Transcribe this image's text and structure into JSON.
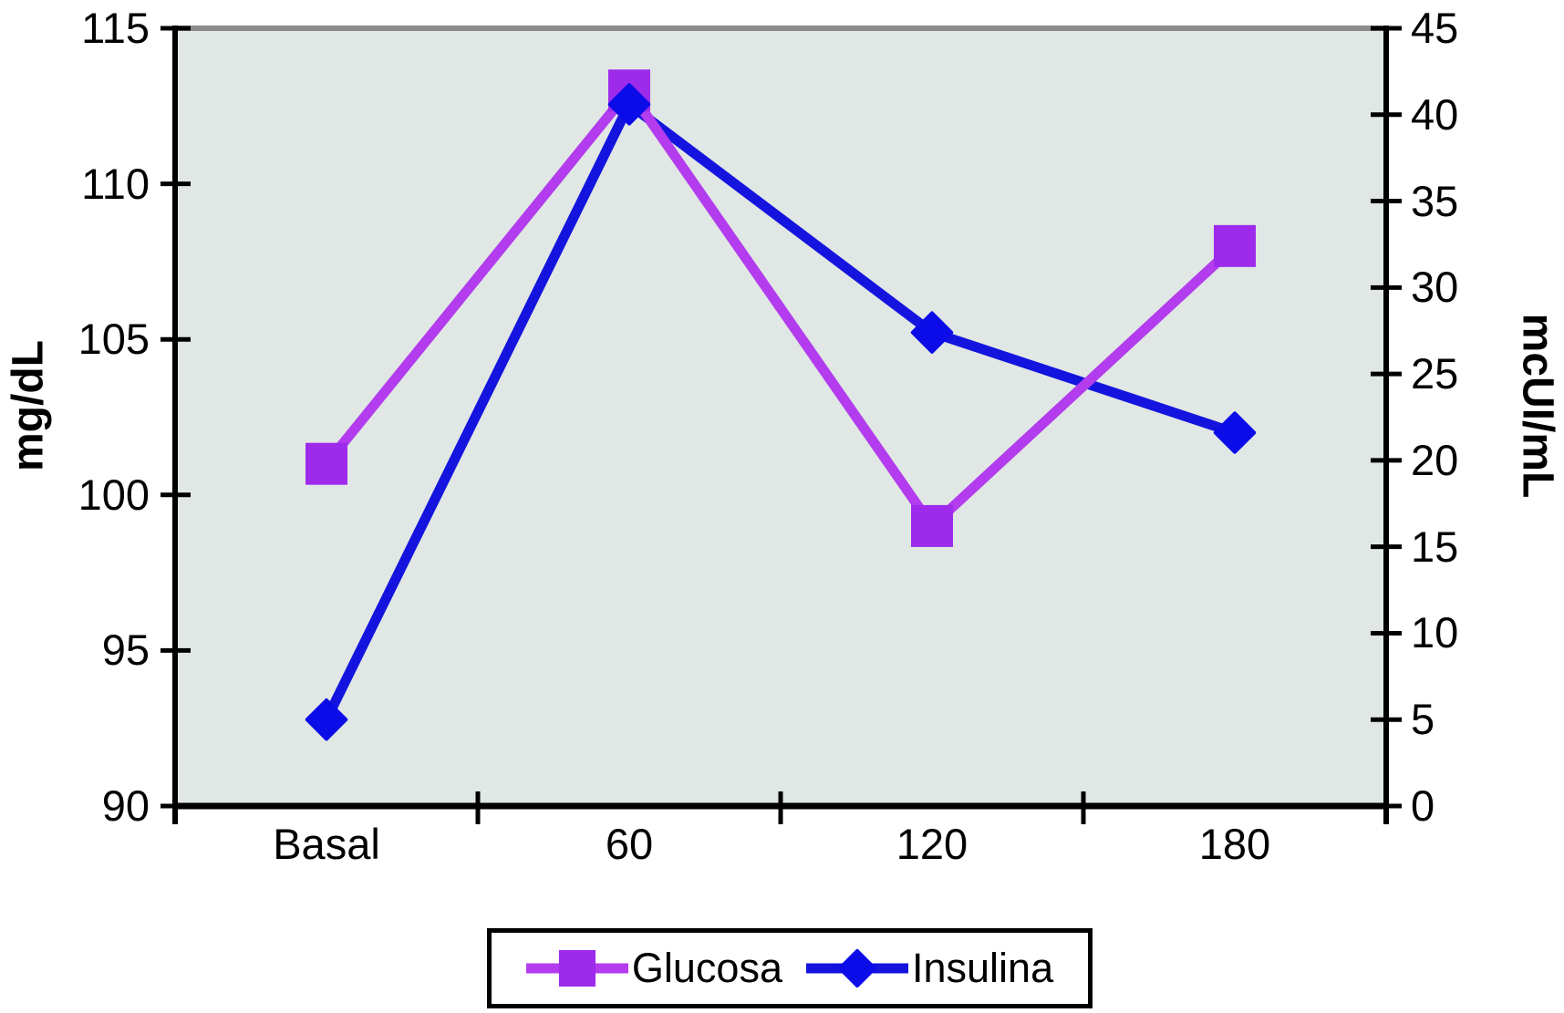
{
  "chart_data": {
    "type": "line",
    "title": "",
    "categories": [
      "Basal",
      "60",
      "120",
      "180"
    ],
    "series": [
      {
        "name": "Glucosa",
        "axis": "left",
        "marker": "square",
        "line_color": "#B23CEE",
        "marker_color": "#9E2BEC",
        "values": [
          101,
          113,
          99,
          108
        ]
      },
      {
        "name": "Insulina",
        "axis": "right",
        "marker": "diamond",
        "line_color": "#1414DE",
        "marker_color": "#0C0CE8",
        "values": [
          5,
          40.6,
          27.4,
          21.6
        ]
      }
    ],
    "left_axis": {
      "label": "mg/dL",
      "min": 90,
      "max": 115,
      "step": 5,
      "ticks": [
        "115",
        "110",
        "105",
        "100",
        "95",
        "90"
      ]
    },
    "right_axis": {
      "label": "mcUI/mL",
      "min": 0,
      "max": 45,
      "step": 5,
      "ticks": [
        "45",
        "40",
        "35",
        "30",
        "25",
        "20",
        "15",
        "10",
        "5",
        "0"
      ]
    },
    "legend": {
      "position": "bottom",
      "entries": [
        "Glucosa",
        "Insulina"
      ]
    },
    "grid": false,
    "plot_background": "#E0E7E4",
    "axis_color": "#000000",
    "top_border_color": "#8C8C8C"
  }
}
